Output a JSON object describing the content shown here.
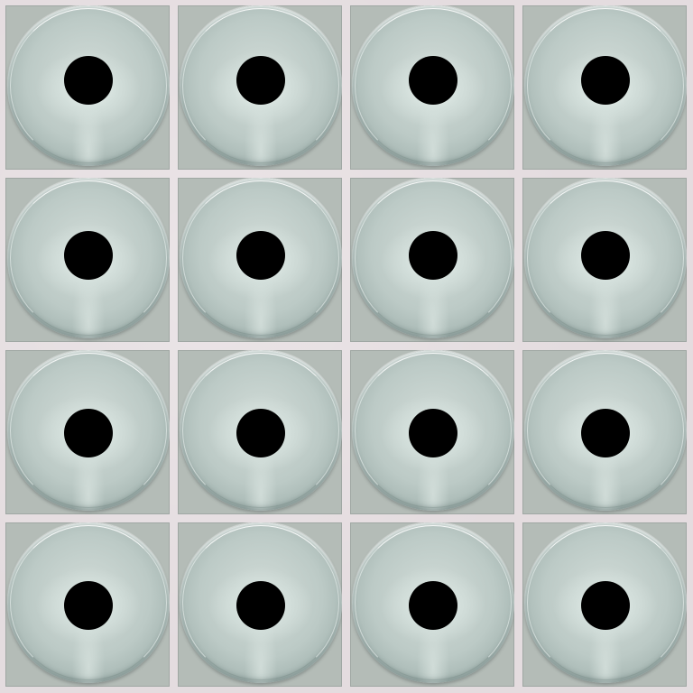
{
  "scene": {
    "description_colors": {
      "background": "#e2dadd",
      "tile": "#b4bcb7",
      "disc_light": "#d2dcd8",
      "disc_dark": "#8fa09c",
      "pupil": "#000000"
    },
    "rows": 4,
    "columns": 4
  }
}
